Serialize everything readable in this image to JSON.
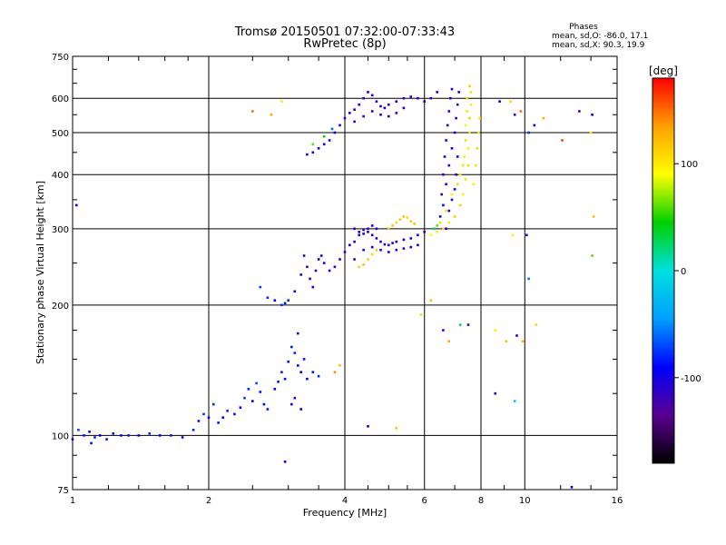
{
  "chart_data": {
    "type": "scatter",
    "title": "Tromsø 20150501 07:32:00-07:33:43",
    "subtitle": "RwPretec (8p)",
    "xlabel": "Frequency [MHz]",
    "ylabel": "Stationary phase Virtual Height [km]",
    "x_scale": "log",
    "y_scale": "log",
    "xlim": [
      1,
      16
    ],
    "ylim": [
      75,
      750
    ],
    "x_ticks": [
      1,
      2,
      4,
      6,
      8,
      10,
      16
    ],
    "y_ticks": [
      75,
      100,
      200,
      300,
      400,
      500,
      600,
      750
    ],
    "grid": true,
    "phase_stats": {
      "heading": "Phases",
      "line_o": "mean, sd,O: -86.0, 17.1",
      "line_x": "mean, sd,X:  90.3, 19.9"
    },
    "colorbar": {
      "label": "[deg]",
      "min": -180,
      "max": 180,
      "ticks": [
        100,
        0,
        -100
      ],
      "colors": [
        "#000000",
        "#5a0090",
        "#0000ff",
        "#00a0ff",
        "#00e0e0",
        "#00d000",
        "#ffff00",
        "#ffa000",
        "#ff0000"
      ]
    },
    "series": [
      {
        "points": [
          [
            1.0,
            98,
            -95
          ],
          [
            1.03,
            103,
            -70
          ],
          [
            1.06,
            100,
            -85
          ],
          [
            1.09,
            102,
            -90
          ],
          [
            1.12,
            99,
            -80
          ],
          [
            1.15,
            100,
            -90
          ],
          [
            1.19,
            98,
            -85
          ],
          [
            1.23,
            101,
            -90
          ],
          [
            1.28,
            100,
            -95
          ],
          [
            1.33,
            100,
            -85
          ],
          [
            1.4,
            100,
            -90
          ],
          [
            1.48,
            101,
            -80
          ],
          [
            1.56,
            100,
            -90
          ],
          [
            1.65,
            100,
            -85
          ],
          [
            1.75,
            99,
            -90
          ],
          [
            1.85,
            103,
            -80
          ],
          [
            1.9,
            108,
            -85
          ],
          [
            1.95,
            112,
            -75
          ],
          [
            2.0,
            110,
            -90
          ],
          [
            2.05,
            118,
            -80
          ],
          [
            2.1,
            107,
            -85
          ],
          [
            2.15,
            110,
            -95
          ],
          [
            2.2,
            114,
            -80
          ],
          [
            2.28,
            112,
            -85
          ],
          [
            2.35,
            116,
            -90
          ],
          [
            2.4,
            122,
            -75
          ],
          [
            2.45,
            128,
            -80
          ],
          [
            2.5,
            120,
            -95
          ],
          [
            2.55,
            132,
            -70
          ],
          [
            2.6,
            126,
            -85
          ],
          [
            2.65,
            118,
            -90
          ],
          [
            2.7,
            115,
            -85
          ],
          [
            2.8,
            128,
            -90
          ],
          [
            2.85,
            133,
            -85
          ],
          [
            2.9,
            140,
            -80
          ],
          [
            2.95,
            135,
            -95
          ],
          [
            3.0,
            148,
            -90
          ],
          [
            3.05,
            160,
            -85
          ],
          [
            3.1,
            155,
            -80
          ],
          [
            3.15,
            145,
            -90
          ],
          [
            3.2,
            140,
            -95
          ],
          [
            3.25,
            150,
            -85
          ],
          [
            3.3,
            135,
            -90
          ],
          [
            3.4,
            140,
            -85
          ],
          [
            3.5,
            137,
            -80
          ],
          [
            3.05,
            118,
            -100
          ],
          [
            3.1,
            122,
            -105
          ],
          [
            3.2,
            115,
            -95
          ],
          [
            1.1,
            96,
            -85
          ],
          [
            2.95,
            87,
            -95
          ],
          [
            3.15,
            172,
            -110
          ]
        ]
      },
      {
        "points": [
          [
            2.6,
            220,
            -75
          ],
          [
            2.7,
            208,
            -80
          ],
          [
            2.8,
            205,
            -90
          ],
          [
            2.9,
            200,
            -75
          ],
          [
            2.95,
            202,
            -85
          ],
          [
            3.0,
            205,
            -80
          ],
          [
            3.1,
            215,
            -100
          ],
          [
            3.2,
            235,
            -110
          ],
          [
            3.25,
            260,
            -105
          ],
          [
            3.3,
            245,
            -115
          ],
          [
            3.35,
            230,
            -110
          ],
          [
            3.4,
            220,
            -105
          ],
          [
            3.45,
            240,
            -110
          ],
          [
            3.5,
            255,
            -100
          ],
          [
            3.55,
            260,
            -105
          ],
          [
            3.6,
            250,
            -110
          ],
          [
            3.7,
            240,
            -100
          ],
          [
            3.8,
            245,
            -105
          ],
          [
            3.9,
            255,
            -100
          ],
          [
            4.0,
            265,
            -110
          ],
          [
            4.1,
            275,
            -100
          ],
          [
            4.2,
            280,
            -105
          ],
          [
            4.3,
            290,
            -100
          ],
          [
            4.4,
            298,
            -110
          ],
          [
            4.5,
            295,
            -100
          ],
          [
            4.6,
            290,
            -105
          ],
          [
            4.7,
            285,
            -100
          ],
          [
            4.8,
            280,
            -110
          ],
          [
            4.9,
            276,
            -100
          ],
          [
            5.0,
            275,
            -105
          ],
          [
            5.1,
            278,
            -100
          ],
          [
            5.2,
            280,
            -110
          ],
          [
            5.4,
            283,
            -100
          ],
          [
            5.6,
            285,
            -105
          ],
          [
            5.8,
            290,
            -100
          ],
          [
            6.0,
            295,
            -110
          ],
          [
            4.2,
            255,
            -110
          ],
          [
            4.4,
            268,
            -105
          ],
          [
            4.6,
            272,
            -100
          ],
          [
            4.8,
            268,
            -110
          ],
          [
            5.0,
            265,
            -105
          ],
          [
            5.2,
            268,
            -100
          ],
          [
            5.4,
            270,
            -110
          ],
          [
            5.6,
            272,
            -105
          ],
          [
            5.8,
            275,
            -100
          ],
          [
            4.3,
            245,
            110
          ],
          [
            4.4,
            248,
            120
          ],
          [
            4.5,
            255,
            115
          ],
          [
            4.6,
            262,
            110
          ],
          [
            4.7,
            268,
            120
          ],
          [
            5.0,
            300,
            115
          ],
          [
            5.1,
            305,
            120
          ],
          [
            5.2,
            310,
            110
          ],
          [
            5.3,
            315,
            115
          ],
          [
            5.4,
            320,
            120
          ],
          [
            5.5,
            318,
            110
          ],
          [
            5.6,
            312,
            115
          ],
          [
            5.7,
            308,
            120
          ],
          [
            4.2,
            300,
            -100
          ],
          [
            4.3,
            295,
            -105
          ],
          [
            4.4,
            292,
            -110
          ],
          [
            4.5,
            300,
            -100
          ],
          [
            4.6,
            305,
            -105
          ],
          [
            4.7,
            300,
            -110
          ]
        ]
      },
      {
        "points": [
          [
            3.3,
            445,
            -100
          ],
          [
            3.4,
            450,
            -105
          ],
          [
            3.5,
            460,
            -110
          ],
          [
            3.6,
            470,
            -100
          ],
          [
            3.7,
            480,
            -105
          ],
          [
            3.8,
            500,
            -95
          ],
          [
            3.9,
            520,
            -100
          ],
          [
            4.0,
            540,
            -105
          ],
          [
            4.1,
            555,
            -100
          ],
          [
            4.2,
            565,
            -110
          ],
          [
            4.3,
            580,
            -100
          ],
          [
            4.4,
            600,
            -105
          ],
          [
            4.5,
            620,
            -100
          ],
          [
            4.6,
            610,
            -110
          ],
          [
            4.7,
            590,
            -100
          ],
          [
            4.8,
            575,
            -105
          ],
          [
            4.9,
            570,
            -100
          ],
          [
            5.0,
            580,
            -110
          ],
          [
            5.2,
            590,
            -100
          ],
          [
            5.4,
            600,
            -105
          ],
          [
            5.6,
            605,
            -100
          ],
          [
            5.8,
            600,
            -110
          ],
          [
            6.0,
            590,
            -100
          ],
          [
            6.2,
            600,
            -105
          ],
          [
            6.4,
            620,
            -100
          ],
          [
            4.2,
            530,
            -100
          ],
          [
            4.4,
            545,
            -110
          ],
          [
            4.6,
            560,
            -100
          ],
          [
            4.8,
            550,
            -105
          ],
          [
            5.0,
            545,
            -100
          ],
          [
            5.2,
            555,
            -110
          ],
          [
            5.4,
            570,
            -100
          ],
          [
            3.4,
            470,
            60
          ],
          [
            3.6,
            490,
            40
          ],
          [
            3.75,
            510,
            -60
          ]
        ]
      },
      {
        "points": [
          [
            6.5,
            320,
            -100
          ],
          [
            6.55,
            360,
            -105
          ],
          [
            6.6,
            400,
            -100
          ],
          [
            6.65,
            440,
            -110
          ],
          [
            6.7,
            480,
            -100
          ],
          [
            6.75,
            520,
            -105
          ],
          [
            6.8,
            560,
            -100
          ],
          [
            6.85,
            600,
            -110
          ],
          [
            6.9,
            630,
            -100
          ],
          [
            6.6,
            340,
            -105
          ],
          [
            6.7,
            380,
            -100
          ],
          [
            6.8,
            420,
            -110
          ],
          [
            6.9,
            460,
            -100
          ],
          [
            7.0,
            500,
            -105
          ],
          [
            7.05,
            540,
            -100
          ],
          [
            7.1,
            580,
            -110
          ],
          [
            7.15,
            620,
            -100
          ],
          [
            6.7,
            300,
            -105
          ],
          [
            6.8,
            330,
            -100
          ],
          [
            6.9,
            350,
            -110
          ],
          [
            7.0,
            370,
            -100
          ],
          [
            7.05,
            400,
            -105
          ],
          [
            7.1,
            440,
            -100
          ],
          [
            6.3,
            300,
            30
          ],
          [
            6.4,
            305,
            60
          ],
          [
            6.5,
            310,
            80
          ]
        ]
      },
      {
        "points": [
          [
            6.2,
            290,
            90
          ],
          [
            6.4,
            295,
            100
          ],
          [
            6.6,
            300,
            110
          ],
          [
            6.8,
            310,
            105
          ],
          [
            7.0,
            320,
            115
          ],
          [
            7.2,
            340,
            110
          ],
          [
            7.3,
            360,
            100
          ],
          [
            7.4,
            390,
            105
          ],
          [
            7.5,
            420,
            110
          ],
          [
            7.5,
            460,
            100
          ],
          [
            7.55,
            500,
            105
          ],
          [
            7.55,
            540,
            110
          ],
          [
            7.6,
            580,
            100
          ],
          [
            7.6,
            620,
            105
          ],
          [
            7.55,
            640,
            115
          ],
          [
            7.4,
            480,
            110
          ],
          [
            7.4,
            520,
            100
          ],
          [
            7.45,
            560,
            105
          ],
          [
            7.45,
            600,
            110
          ],
          [
            7.35,
            440,
            100
          ],
          [
            7.3,
            420,
            105
          ],
          [
            7.2,
            400,
            100
          ],
          [
            7.1,
            380,
            110
          ],
          [
            6.9,
            360,
            100
          ],
          [
            6.7,
            330,
            105
          ],
          [
            7.7,
            380,
            100
          ],
          [
            7.8,
            420,
            105
          ],
          [
            7.85,
            460,
            110
          ],
          [
            7.9,
            500,
            100
          ],
          [
            7.95,
            540,
            105
          ]
        ]
      },
      {
        "points": [
          [
            1.02,
            340,
            -100
          ],
          [
            2.5,
            560,
            150
          ],
          [
            2.75,
            550,
            130
          ],
          [
            2.9,
            590,
            100
          ],
          [
            5.9,
            190,
            80
          ],
          [
            6.2,
            205,
            120
          ],
          [
            6.6,
            175,
            -110
          ],
          [
            6.8,
            165,
            130
          ],
          [
            7.2,
            180,
            30
          ],
          [
            7.5,
            180,
            -120
          ],
          [
            8.6,
            175,
            100
          ],
          [
            9.1,
            165,
            120
          ],
          [
            9.6,
            170,
            -110
          ],
          [
            9.9,
            165,
            130
          ],
          [
            10.1,
            290,
            -120
          ],
          [
            10.2,
            230,
            -60
          ],
          [
            10.6,
            180,
            110
          ],
          [
            8.6,
            125,
            -110
          ],
          [
            9.5,
            120,
            -20
          ],
          [
            4.5,
            105,
            -100
          ],
          [
            5.2,
            104,
            120
          ],
          [
            3.8,
            140,
            140
          ],
          [
            3.9,
            145,
            120
          ],
          [
            9.4,
            290,
            100
          ],
          [
            9.5,
            550,
            -120
          ],
          [
            9.8,
            560,
            150
          ],
          [
            10.2,
            500,
            -80
          ],
          [
            10.5,
            520,
            -90
          ],
          [
            11.0,
            540,
            130
          ],
          [
            12.1,
            480,
            160
          ],
          [
            13.2,
            560,
            -130
          ],
          [
            14.1,
            550,
            -100
          ],
          [
            14.2,
            320,
            120
          ],
          [
            14.1,
            260,
            60
          ],
          [
            12.7,
            76,
            -110
          ],
          [
            9.3,
            590,
            110
          ],
          [
            8.8,
            590,
            -90
          ],
          [
            14.0,
            500,
            100
          ]
        ]
      }
    ]
  }
}
